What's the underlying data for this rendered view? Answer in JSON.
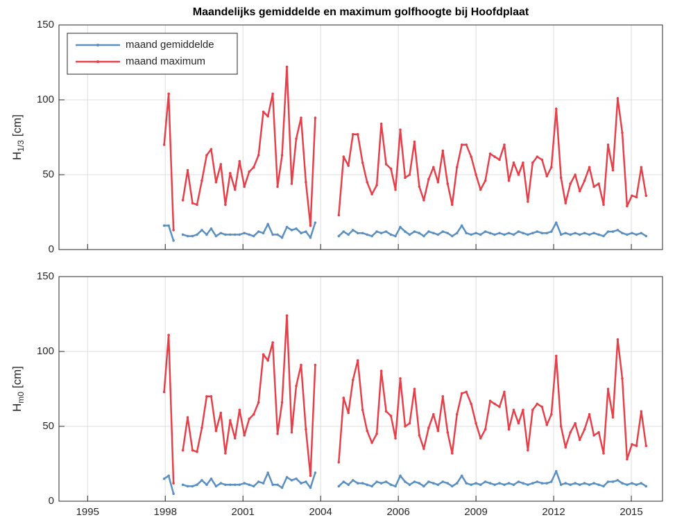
{
  "chart_data": [
    {
      "type": "line",
      "title": "Maandelijks gemiddelde en maximum golfhoogte bij Hoofdplaat",
      "ylabel": {
        "text": "H",
        "subscript": "1/3",
        "unit": "[cm]"
      },
      "x": [
        1997.88,
        1998.04,
        1998.21,
        1998.38,
        1998.54,
        1998.71,
        1998.88,
        1999.04,
        1999.21,
        1999.38,
        1999.54,
        1999.71,
        1999.88,
        2000.04,
        2000.21,
        2000.38,
        2000.54,
        2000.71,
        2000.88,
        2001.04,
        2001.21,
        2001.38,
        2001.54,
        2001.71,
        2001.88,
        2002.04,
        2002.21,
        2002.38,
        2002.54,
        2002.71,
        2002.88,
        2003.04,
        2003.21,
        2003.54,
        2004.04,
        2004.21,
        2004.38,
        2004.54,
        2004.71,
        2004.88,
        2005.04,
        2005.21,
        2005.38,
        2005.54,
        2005.71,
        2005.88,
        2006.04,
        2006.21,
        2006.38,
        2006.54,
        2006.71,
        2006.88,
        2007.04,
        2007.21,
        2007.38,
        2007.54,
        2007.71,
        2007.88,
        2008.04,
        2008.21,
        2008.38,
        2008.54,
        2008.71,
        2008.88,
        2009.04,
        2009.21,
        2009.38,
        2009.54,
        2009.71,
        2009.88,
        2010.04,
        2010.21,
        2010.38,
        2010.54,
        2010.71,
        2010.88,
        2011.04,
        2011.21,
        2011.38,
        2011.54,
        2011.71,
        2011.88,
        2012.04,
        2012.21,
        2012.38,
        2012.54,
        2012.71,
        2012.88,
        2013.04,
        2013.21,
        2013.38,
        2013.54,
        2013.71,
        2013.88,
        2014.04,
        2014.21,
        2014.38,
        2014.54,
        2014.71,
        2014.88
      ],
      "series": [
        {
          "name": "maand gemiddelde",
          "color": "#5a8fc2",
          "values": [
            16,
            16,
            6,
            null,
            10,
            9,
            9,
            10,
            13,
            10,
            14,
            9,
            11,
            10,
            10,
            10,
            10,
            11,
            10,
            9,
            12,
            11,
            17,
            10,
            10,
            8,
            15,
            13,
            14,
            11,
            12,
            8,
            18,
            null,
            9,
            12,
            10,
            13,
            11,
            11,
            10,
            9,
            12,
            11,
            12,
            10,
            9,
            15,
            12,
            10,
            12,
            11,
            9,
            12,
            11,
            10,
            12,
            11,
            9,
            11,
            16,
            11,
            10,
            11,
            10,
            12,
            11,
            10,
            11,
            10,
            11,
            10,
            12,
            11,
            10,
            11,
            12,
            11,
            11,
            12,
            18,
            10,
            11,
            10,
            11,
            10,
            11,
            10,
            11,
            10,
            9,
            12,
            12,
            13,
            11,
            10,
            11,
            10,
            11,
            9
          ]
        },
        {
          "name": "maand maximum",
          "color": "#e5404a",
          "values": [
            70,
            104,
            13,
            null,
            33,
            53,
            31,
            30,
            46,
            63,
            67,
            45,
            57,
            30,
            51,
            40,
            59,
            42,
            52,
            55,
            63,
            92,
            89,
            104,
            42,
            63,
            122,
            44,
            74,
            88,
            45,
            16,
            88,
            null,
            23,
            62,
            56,
            77,
            77,
            58,
            45,
            37,
            43,
            84,
            57,
            54,
            40,
            80,
            48,
            50,
            72,
            42,
            33,
            47,
            55,
            45,
            66,
            44,
            30,
            55,
            70,
            70,
            62,
            50,
            40,
            46,
            64,
            62,
            60,
            70,
            46,
            58,
            50,
            58,
            32,
            58,
            62,
            60,
            49,
            55,
            94,
            48,
            31,
            44,
            50,
            39,
            46,
            55,
            42,
            44,
            30,
            70,
            53,
            101,
            78,
            29,
            36,
            35,
            55,
            36
          ]
        }
      ],
      "legend": "northwest",
      "xlim": [
        1994.17,
        2015.46
      ],
      "xticks": [
        1995.18,
        1997.92,
        2000.66,
        2003.4,
        2006.14,
        2008.88,
        2011.62,
        2014.36
      ],
      "show_xtick_labels": false,
      "ylim": [
        0,
        150
      ],
      "yticks": [
        0,
        50,
        100,
        150
      ],
      "grid": true
    },
    {
      "type": "line",
      "ylabel": {
        "text": "H",
        "subscript": "m0",
        "unit": "[cm]"
      },
      "x": [
        1997.88,
        1998.04,
        1998.21,
        1998.38,
        1998.54,
        1998.71,
        1998.88,
        1999.04,
        1999.21,
        1999.38,
        1999.54,
        1999.71,
        1999.88,
        2000.04,
        2000.21,
        2000.38,
        2000.54,
        2000.71,
        2000.88,
        2001.04,
        2001.21,
        2001.38,
        2001.54,
        2001.71,
        2001.88,
        2002.04,
        2002.21,
        2002.38,
        2002.54,
        2002.71,
        2002.88,
        2003.04,
        2003.21,
        2003.54,
        2004.04,
        2004.21,
        2004.38,
        2004.54,
        2004.71,
        2004.88,
        2005.04,
        2005.21,
        2005.38,
        2005.54,
        2005.71,
        2005.88,
        2006.04,
        2006.21,
        2006.38,
        2006.54,
        2006.71,
        2006.88,
        2007.04,
        2007.21,
        2007.38,
        2007.54,
        2007.71,
        2007.88,
        2008.04,
        2008.21,
        2008.38,
        2008.54,
        2008.71,
        2008.88,
        2009.04,
        2009.21,
        2009.38,
        2009.54,
        2009.71,
        2009.88,
        2010.04,
        2010.21,
        2010.38,
        2010.54,
        2010.71,
        2010.88,
        2011.04,
        2011.21,
        2011.38,
        2011.54,
        2011.71,
        2011.88,
        2012.04,
        2012.21,
        2012.38,
        2012.54,
        2012.71,
        2012.88,
        2013.04,
        2013.21,
        2013.38,
        2013.54,
        2013.71,
        2013.88,
        2014.04,
        2014.21,
        2014.38,
        2014.54,
        2014.71,
        2014.88
      ],
      "series": [
        {
          "color": "#5a8fc2",
          "values": [
            15,
            17,
            5,
            null,
            11,
            10,
            10,
            11,
            14,
            11,
            15,
            10,
            12,
            11,
            11,
            11,
            11,
            12,
            11,
            10,
            13,
            12,
            19,
            11,
            11,
            9,
            16,
            14,
            15,
            12,
            13,
            9,
            19,
            null,
            10,
            13,
            11,
            14,
            12,
            12,
            11,
            10,
            13,
            12,
            13,
            11,
            10,
            17,
            13,
            11,
            13,
            12,
            10,
            13,
            12,
            11,
            13,
            12,
            10,
            12,
            17,
            12,
            11,
            12,
            11,
            13,
            12,
            11,
            12,
            11,
            12,
            11,
            13,
            12,
            11,
            12,
            13,
            12,
            12,
            13,
            20,
            11,
            12,
            11,
            12,
            11,
            12,
            11,
            12,
            11,
            10,
            13,
            13,
            14,
            12,
            11,
            12,
            11,
            12,
            10
          ]
        },
        {
          "color": "#e5404a",
          "values": [
            73,
            111,
            12,
            null,
            34,
            56,
            34,
            33,
            49,
            70,
            70,
            47,
            59,
            32,
            54,
            42,
            61,
            44,
            55,
            58,
            66,
            98,
            94,
            106,
            45,
            66,
            124,
            46,
            77,
            91,
            48,
            17,
            91,
            null,
            26,
            69,
            59,
            81,
            94,
            61,
            47,
            39,
            45,
            87,
            60,
            57,
            42,
            82,
            50,
            52,
            75,
            44,
            35,
            49,
            58,
            47,
            70,
            46,
            32,
            58,
            72,
            73,
            65,
            52,
            42,
            48,
            67,
            65,
            63,
            73,
            48,
            61,
            52,
            61,
            34,
            61,
            65,
            63,
            51,
            58,
            97,
            50,
            36,
            46,
            52,
            41,
            48,
            58,
            44,
            46,
            32,
            75,
            56,
            108,
            82,
            28,
            38,
            37,
            60,
            37
          ]
        }
      ],
      "xlim": [
        1994.17,
        2015.46
      ],
      "xticks": [
        {
          "value": 1995.18,
          "label": "1995"
        },
        {
          "value": 1997.92,
          "label": "1998"
        },
        {
          "value": 2000.66,
          "label": "2001"
        },
        {
          "value": 2003.4,
          "label": "2004"
        },
        {
          "value": 2006.14,
          "label": "2006"
        },
        {
          "value": 2008.88,
          "label": "2009"
        },
        {
          "value": 2011.62,
          "label": "2012"
        },
        {
          "value": 2014.36,
          "label": "2015"
        }
      ],
      "show_xtick_labels": true,
      "ylim": [
        0,
        150
      ],
      "yticks": [
        0,
        50,
        100,
        150
      ],
      "grid": true
    }
  ]
}
